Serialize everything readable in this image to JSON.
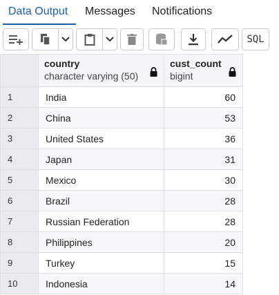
{
  "tabs": [
    {
      "label": "Data Output",
      "active": true
    },
    {
      "label": "Messages",
      "active": false
    },
    {
      "label": "Notifications",
      "active": false
    }
  ],
  "toolbar": {
    "sql_label": "SQL",
    "icons": [
      "add-row-icon",
      "copy-icon",
      "chevron-down-icon",
      "paste-icon",
      "chevron-down-icon",
      "delete-icon",
      "save-data-icon",
      "download-icon",
      "graph-icon"
    ]
  },
  "columns": [
    {
      "name": "country",
      "type": "character varying (50)",
      "locked": true
    },
    {
      "name": "cust_count",
      "type": "bigint",
      "locked": true
    }
  ],
  "rows": [
    {
      "num": "1",
      "country": "India",
      "cust_count": "60"
    },
    {
      "num": "2",
      "country": "China",
      "cust_count": "53"
    },
    {
      "num": "3",
      "country": "United States",
      "cust_count": "36"
    },
    {
      "num": "4",
      "country": "Japan",
      "cust_count": "31"
    },
    {
      "num": "5",
      "country": "Mexico",
      "cust_count": "30"
    },
    {
      "num": "6",
      "country": "Brazil",
      "cust_count": "28"
    },
    {
      "num": "7",
      "country": "Russian Federation",
      "cust_count": "28"
    },
    {
      "num": "8",
      "country": "Philippines",
      "cust_count": "20"
    },
    {
      "num": "9",
      "country": "Turkey",
      "cust_count": "15"
    },
    {
      "num": "10",
      "country": "Indonesia",
      "cust_count": "14"
    }
  ],
  "colors": {
    "accent": "#1a5fa8",
    "header_bg": "#f4f5f7",
    "rownum_bg": "#e8eaed"
  }
}
